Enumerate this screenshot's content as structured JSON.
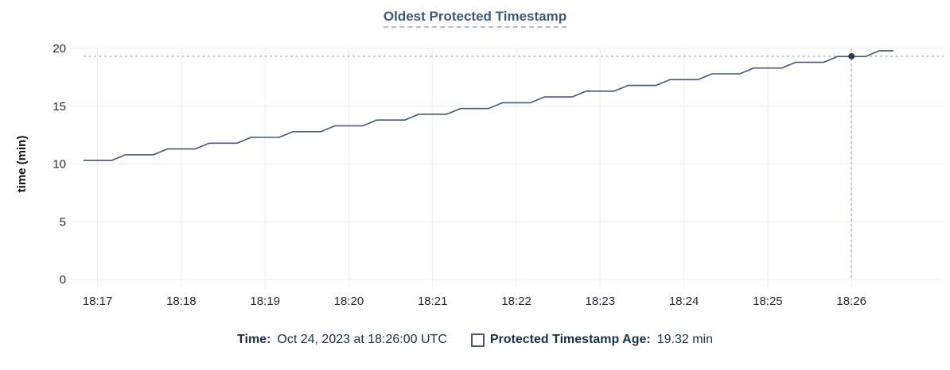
{
  "title": "Oldest Protected Timestamp",
  "colors": {
    "line": "#475872",
    "dot": "#2c3a52",
    "crosshair": "#9cafbf",
    "grid": "#ececec",
    "axis_text": "#24282e",
    "title_text": "#3c5a78",
    "legend_text": "#16304c"
  },
  "chart_data": {
    "type": "line",
    "title": "Oldest Protected Timestamp",
    "xlabel": "",
    "ylabel": "time (min)",
    "ylim": [
      0,
      20
    ],
    "y_ticks": [
      0,
      5,
      10,
      15,
      20
    ],
    "x_ticks": [
      "18:17",
      "18:18",
      "18:19",
      "18:20",
      "18:21",
      "18:22",
      "18:23",
      "18:24",
      "18:25",
      "18:26"
    ],
    "x_domain": [
      "18:16:42",
      "18:27:06"
    ],
    "grid": true,
    "legend_position": "bottom",
    "series": [
      {
        "name": "Protected Timestamp Age",
        "unit": "min",
        "points": [
          [
            "18:16:50",
            10.3
          ],
          [
            "18:17:00",
            10.3
          ],
          [
            "18:17:10",
            10.3
          ],
          [
            "18:17:20",
            10.8
          ],
          [
            "18:17:30",
            10.8
          ],
          [
            "18:17:40",
            10.8
          ],
          [
            "18:17:50",
            11.3
          ],
          [
            "18:18:00",
            11.3
          ],
          [
            "18:18:10",
            11.3
          ],
          [
            "18:18:20",
            11.8
          ],
          [
            "18:18:30",
            11.8
          ],
          [
            "18:18:40",
            11.8
          ],
          [
            "18:18:50",
            12.3
          ],
          [
            "18:19:00",
            12.3
          ],
          [
            "18:19:10",
            12.3
          ],
          [
            "18:19:20",
            12.8
          ],
          [
            "18:19:30",
            12.8
          ],
          [
            "18:19:40",
            12.8
          ],
          [
            "18:19:50",
            13.3
          ],
          [
            "18:20:00",
            13.3
          ],
          [
            "18:20:10",
            13.3
          ],
          [
            "18:20:20",
            13.8
          ],
          [
            "18:20:30",
            13.8
          ],
          [
            "18:20:40",
            13.8
          ],
          [
            "18:20:50",
            14.3
          ],
          [
            "18:21:00",
            14.3
          ],
          [
            "18:21:10",
            14.3
          ],
          [
            "18:21:20",
            14.8
          ],
          [
            "18:21:30",
            14.8
          ],
          [
            "18:21:40",
            14.8
          ],
          [
            "18:21:50",
            15.3
          ],
          [
            "18:22:00",
            15.3
          ],
          [
            "18:22:10",
            15.3
          ],
          [
            "18:22:20",
            15.8
          ],
          [
            "18:22:30",
            15.8
          ],
          [
            "18:22:40",
            15.8
          ],
          [
            "18:22:50",
            16.3
          ],
          [
            "18:23:00",
            16.3
          ],
          [
            "18:23:10",
            16.3
          ],
          [
            "18:23:20",
            16.8
          ],
          [
            "18:23:30",
            16.8
          ],
          [
            "18:23:40",
            16.8
          ],
          [
            "18:23:50",
            17.3
          ],
          [
            "18:24:00",
            17.3
          ],
          [
            "18:24:10",
            17.3
          ],
          [
            "18:24:20",
            17.8
          ],
          [
            "18:24:30",
            17.8
          ],
          [
            "18:24:40",
            17.8
          ],
          [
            "18:24:50",
            18.3
          ],
          [
            "18:25:00",
            18.3
          ],
          [
            "18:25:10",
            18.3
          ],
          [
            "18:25:20",
            18.8
          ],
          [
            "18:25:30",
            18.8
          ],
          [
            "18:25:40",
            18.8
          ],
          [
            "18:25:50",
            19.3
          ],
          [
            "18:26:00",
            19.3
          ],
          [
            "18:26:10",
            19.3
          ],
          [
            "18:26:20",
            19.8
          ],
          [
            "18:26:30",
            19.8
          ]
        ]
      }
    ],
    "crosshair": {
      "time": "18:26:00",
      "value": 19.32
    }
  },
  "legend": {
    "time_label": "Time:",
    "time_value": "Oct 24, 2023 at 18:26:00 UTC",
    "series_label": "Protected Timestamp Age:",
    "series_value": "19.32 min",
    "swatch": "square-outline"
  }
}
